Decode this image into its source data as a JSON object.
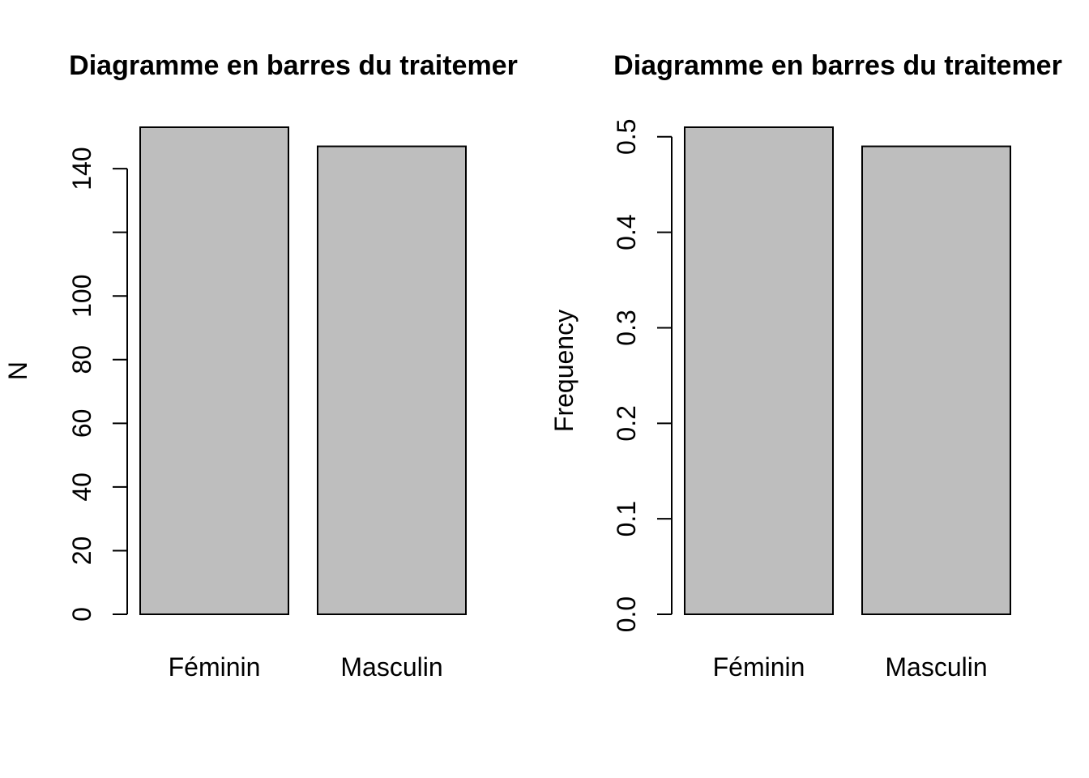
{
  "chart_data": [
    {
      "type": "bar",
      "title": "Diagramme en barres du traitemer",
      "xlabel": "",
      "ylabel": "N",
      "categories": [
        "Féminin",
        "Masculin"
      ],
      "values": [
        153,
        147
      ],
      "ylim": [
        0,
        153
      ],
      "yticks": [
        0,
        20,
        40,
        60,
        80,
        100,
        120,
        140
      ],
      "ytick_labels": [
        "0",
        "20",
        "40",
        "60",
        "80",
        "100",
        "",
        "140"
      ],
      "bar_color": "#bebebe",
      "grid": false
    },
    {
      "type": "bar",
      "title": "Diagramme en barres du traitemer",
      "xlabel": "",
      "ylabel": "Frequency",
      "categories": [
        "Féminin",
        "Masculin"
      ],
      "values": [
        0.51,
        0.49
      ],
      "ylim": [
        0,
        0.51
      ],
      "yticks": [
        0.0,
        0.1,
        0.2,
        0.3,
        0.4,
        0.5
      ],
      "ytick_labels": [
        "0.0",
        "0.1",
        "0.2",
        "0.3",
        "0.4",
        "0.5"
      ],
      "bar_color": "#bebebe",
      "grid": false
    }
  ]
}
